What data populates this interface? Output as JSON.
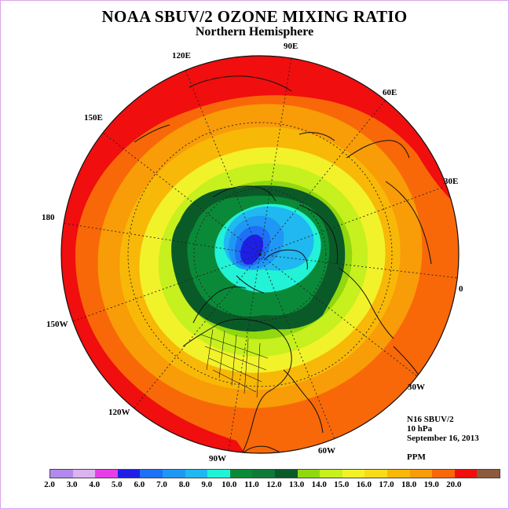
{
  "header": {
    "title": "NOAA SBUV/2 OZONE MIXING RATIO",
    "subtitle": "Northern Hemisphere"
  },
  "map": {
    "projection": "north-polar-stereographic",
    "longitude_labels": [
      "0",
      "30E",
      "60E",
      "90E",
      "120E",
      "150E",
      "180",
      "150W",
      "120W",
      "90W",
      "60W",
      "30W"
    ],
    "outer_contour_ppm": 18.0,
    "minimum_region_ppm": 5.0,
    "latitude_circles": "dotted",
    "coastlines": true
  },
  "info": {
    "satellite": "N16 SBUV/2",
    "level": "10 hPa",
    "date": "September 16, 2013",
    "unit": "PPM"
  },
  "legend": {
    "colors": [
      "#b28aee",
      "#dcb2f0",
      "#e83ce8",
      "#1e1ee8",
      "#1e70f4",
      "#1e98f4",
      "#20b8f0",
      "#22f2d6",
      "#0a8a38",
      "#0e7a38",
      "#0a5a28",
      "#92d80e",
      "#c6f01e",
      "#f2f22a",
      "#f8dc18",
      "#f8b808",
      "#f89c08",
      "#f86808",
      "#f00e0e",
      "#8c5a3c"
    ],
    "ticks": [
      "2.0",
      "3.0",
      "4.0",
      "5.0",
      "6.0",
      "7.0",
      "8.0",
      "9.0",
      "10.0",
      "11.0",
      "12.0",
      "13.0",
      "14.0",
      "15.0",
      "16.0",
      "17.0",
      "18.0",
      "19.0",
      "20.0"
    ]
  }
}
